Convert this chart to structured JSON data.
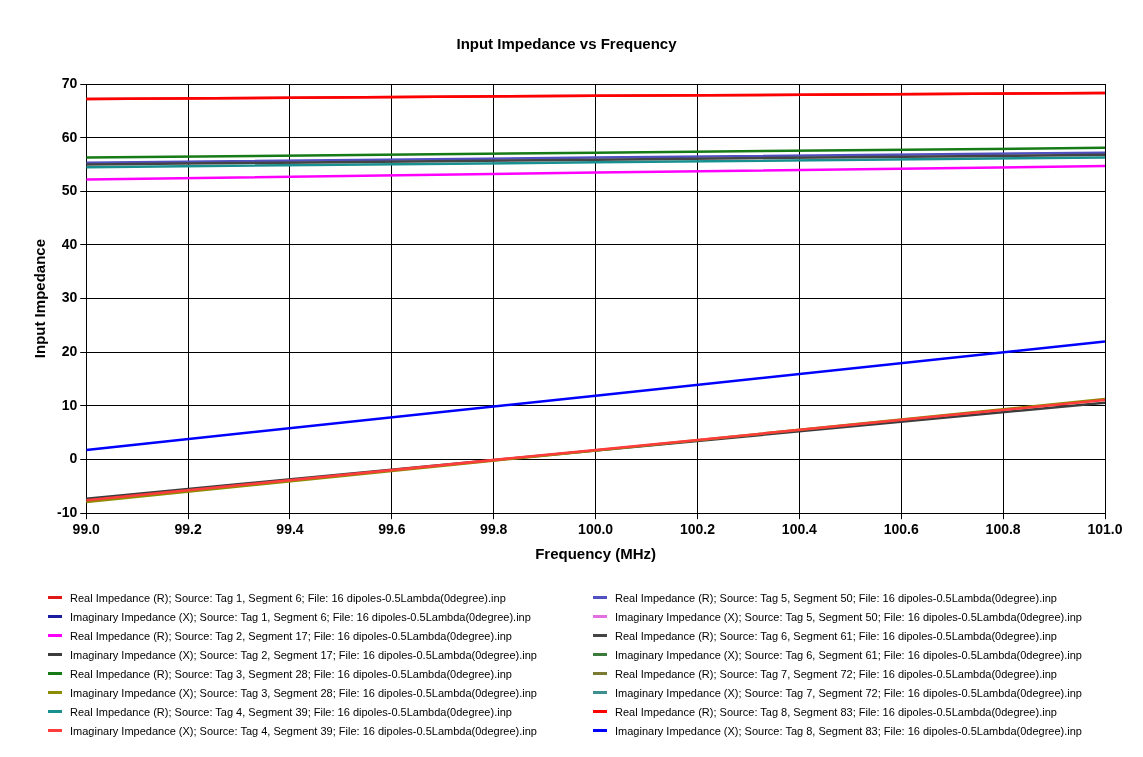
{
  "chart_data": {
    "type": "line",
    "title": "Input Impedance vs Frequency",
    "xlabel": "Frequency (MHz)",
    "ylabel": "Input Impedance",
    "xlim": [
      99,
      101
    ],
    "xticks": [
      {
        "value": 99,
        "label": "99.0"
      },
      {
        "value": 99.2,
        "label": "99.2"
      },
      {
        "value": 99.4,
        "label": "99.4"
      },
      {
        "value": 99.6,
        "label": "99.6"
      },
      {
        "value": 99.8,
        "label": "99.8"
      },
      {
        "value": 100,
        "label": "100.0"
      },
      {
        "value": 100.2,
        "label": "100.2"
      },
      {
        "value": 100.4,
        "label": "100.4"
      },
      {
        "value": 100.6,
        "label": "100.6"
      },
      {
        "value": 100.8,
        "label": "100.8"
      },
      {
        "value": 101,
        "label": "101.0"
      }
    ],
    "ylim": [
      -10,
      70
    ],
    "yticks": [
      -10,
      0,
      10,
      20,
      30,
      40,
      50,
      60,
      70
    ],
    "grid": true,
    "legend": "bottom",
    "marker": "none",
    "line_style": "solid",
    "x": [
      99,
      100,
      101
    ],
    "series": [
      {
        "name": "Real Impedance (R); Source: Tag 1, Segment 6; File: 16 dipoles-0.5Lambda(0degree).inp",
        "color": "#e01818",
        "values": [
          67.2,
          67.8,
          68.3
        ]
      },
      {
        "name": "Imaginary Impedance (X); Source: Tag 1, Segment 6; File: 16 dipoles-0.5Lambda(0degree).inp",
        "color": "#1c1ca0",
        "values": [
          null,
          null,
          null
        ]
      },
      {
        "name": "Real Impedance (R); Source: Tag 2, Segment 17; File: 16 dipoles-0.5Lambda(0degree).inp",
        "color": "#ff00ff",
        "values": [
          52.2,
          53.5,
          54.7
        ]
      },
      {
        "name": "Imaginary Impedance (X); Source: Tag 2, Segment 17; File: 16 dipoles-0.5Lambda(0degree).inp",
        "color": "#3c3c3c",
        "values": [
          -7.3,
          1.7,
          10.6
        ]
      },
      {
        "name": "Real Impedance (R); Source: Tag 3, Segment 28; File: 16 dipoles-0.5Lambda(0degree).inp",
        "color": "#167a16",
        "values": [
          56.3,
          57.2,
          58.1
        ]
      },
      {
        "name": "Imaginary Impedance (X); Source: Tag 3, Segment 28; File: 16 dipoles-0.5Lambda(0degree).inp",
        "color": "#8c8c00",
        "values": [
          -7.9,
          1.7,
          11.3
        ]
      },
      {
        "name": "Real Impedance (R); Source: Tag 4, Segment 39; File: 16 dipoles-0.5Lambda(0degree).inp",
        "color": "#189090",
        "values": [
          54.5,
          55.4,
          56.3
        ]
      },
      {
        "name": "Imaginary Impedance (X); Source: Tag 4, Segment 39; File: 16 dipoles-0.5Lambda(0degree).inp",
        "color": "#ff3c3c",
        "values": [
          -7.6,
          1.8,
          11.1
        ]
      },
      {
        "name": "Real Impedance (R); Source: Tag 5, Segment 50; File: 16 dipoles-0.5Lambda(0degree).inp",
        "color": "#5050c0",
        "values": [
          55.3,
          56.3,
          57.2
        ]
      },
      {
        "name": "Imaginary Impedance (X); Source: Tag 5, Segment 50; File: 16 dipoles-0.5Lambda(0degree).inp",
        "color": "#e070e0",
        "values": [
          null,
          null,
          null
        ]
      },
      {
        "name": "Real Impedance (R); Source: Tag 6, Segment 61; File: 16 dipoles-0.5Lambda(0degree).inp",
        "color": "#444444",
        "values": [
          55,
          55.9,
          56.8
        ]
      },
      {
        "name": "Imaginary Impedance (X); Source: Tag 6, Segment 61; File: 16 dipoles-0.5Lambda(0degree).inp",
        "color": "#3c7a3c",
        "values": [
          null,
          null,
          null
        ]
      },
      {
        "name": "Real Impedance (R); Source: Tag 7, Segment 72; File: 16 dipoles-0.5Lambda(0degree).inp",
        "color": "#7a7a32",
        "values": [
          null,
          null,
          null
        ]
      },
      {
        "name": "Imaginary Impedance (X); Source: Tag 7, Segment 72; File: 16 dipoles-0.5Lambda(0degree).inp",
        "color": "#3c9090",
        "values": [
          null,
          null,
          null
        ]
      },
      {
        "name": "Real Impedance (R); Source: Tag 8, Segment 83; File: 16 dipoles-0.5Lambda(0degree).inp",
        "color": "#ff0000",
        "values": [
          67.2,
          67.8,
          68.3
        ]
      },
      {
        "name": "Imaginary Impedance (X); Source: Tag 8, Segment 83; File: 16 dipoles-0.5Lambda(0degree).inp",
        "color": "#0000ff",
        "values": [
          1.8,
          11.9,
          22
        ]
      }
    ]
  }
}
